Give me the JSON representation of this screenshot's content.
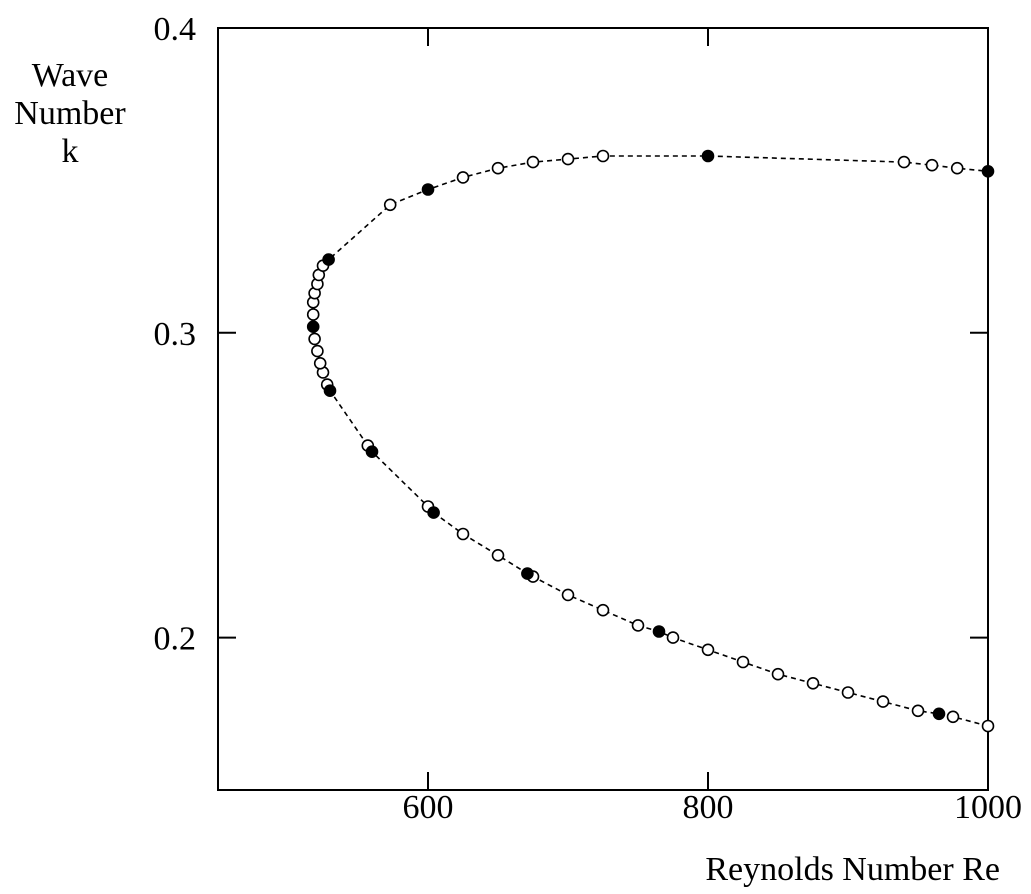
{
  "chart_data": {
    "type": "scatter",
    "xlabel": "Reynolds Number  Re",
    "ylabel": [
      "Wave",
      "Number",
      "k"
    ],
    "xlim": [
      450,
      1000
    ],
    "ylim": [
      0.15,
      0.4
    ],
    "x_ticks": [
      600,
      800,
      1000
    ],
    "x_tick_labels": [
      "600",
      "800",
      "1000"
    ],
    "y_ticks": [
      0.2,
      0.3,
      0.4
    ],
    "y_tick_labels": [
      "0.2",
      "0.3",
      "0.4"
    ],
    "grid": false,
    "curve": [
      [
        1000,
        0.171
      ],
      [
        975,
        0.174
      ],
      [
        965,
        0.175
      ],
      [
        950,
        0.176
      ],
      [
        925,
        0.179
      ],
      [
        900,
        0.182
      ],
      [
        875,
        0.185
      ],
      [
        850,
        0.188
      ],
      [
        825,
        0.192
      ],
      [
        800,
        0.196
      ],
      [
        775,
        0.2
      ],
      [
        765,
        0.202
      ],
      [
        750,
        0.204
      ],
      [
        725,
        0.209
      ],
      [
        700,
        0.214
      ],
      [
        675,
        0.22
      ],
      [
        671,
        0.221
      ],
      [
        650,
        0.227
      ],
      [
        625,
        0.234
      ],
      [
        604,
        0.241
      ],
      [
        600,
        0.243
      ],
      [
        560,
        0.261
      ],
      [
        557,
        0.263
      ],
      [
        530,
        0.281
      ],
      [
        528,
        0.283
      ],
      [
        525,
        0.287
      ],
      [
        523,
        0.29
      ],
      [
        521,
        0.294
      ],
      [
        519,
        0.298
      ],
      [
        518,
        0.302
      ],
      [
        518,
        0.306
      ],
      [
        518,
        0.31
      ],
      [
        519,
        0.313
      ],
      [
        521,
        0.316
      ],
      [
        522,
        0.319
      ],
      [
        525,
        0.322
      ],
      [
        529,
        0.324
      ],
      [
        573,
        0.342
      ],
      [
        600,
        0.347
      ],
      [
        625,
        0.351
      ],
      [
        650,
        0.354
      ],
      [
        675,
        0.356
      ],
      [
        700,
        0.357
      ],
      [
        725,
        0.358
      ],
      [
        800,
        0.358
      ],
      [
        940,
        0.356
      ],
      [
        960,
        0.355
      ],
      [
        978,
        0.354
      ],
      [
        1000,
        0.353
      ]
    ],
    "series": [
      {
        "name": "open",
        "marker": "open-circle",
        "points": [
          [
            1000,
            0.171
          ],
          [
            975,
            0.174
          ],
          [
            950,
            0.176
          ],
          [
            925,
            0.179
          ],
          [
            900,
            0.182
          ],
          [
            875,
            0.185
          ],
          [
            850,
            0.188
          ],
          [
            825,
            0.192
          ],
          [
            800,
            0.196
          ],
          [
            775,
            0.2
          ],
          [
            750,
            0.204
          ],
          [
            725,
            0.209
          ],
          [
            700,
            0.214
          ],
          [
            675,
            0.22
          ],
          [
            650,
            0.227
          ],
          [
            625,
            0.234
          ],
          [
            600,
            0.243
          ],
          [
            557,
            0.263
          ],
          [
            528,
            0.283
          ],
          [
            525,
            0.287
          ],
          [
            523,
            0.29
          ],
          [
            521,
            0.294
          ],
          [
            519,
            0.298
          ],
          [
            518,
            0.306
          ],
          [
            518,
            0.31
          ],
          [
            519,
            0.313
          ],
          [
            521,
            0.316
          ],
          [
            522,
            0.319
          ],
          [
            525,
            0.322
          ],
          [
            573,
            0.342
          ],
          [
            625,
            0.351
          ],
          [
            650,
            0.354
          ],
          [
            675,
            0.356
          ],
          [
            700,
            0.357
          ],
          [
            725,
            0.358
          ],
          [
            940,
            0.356
          ],
          [
            960,
            0.355
          ],
          [
            978,
            0.354
          ]
        ]
      },
      {
        "name": "filled",
        "marker": "filled-circle",
        "points": [
          [
            965,
            0.175
          ],
          [
            765,
            0.202
          ],
          [
            671,
            0.221
          ],
          [
            604,
            0.241
          ],
          [
            560,
            0.261
          ],
          [
            530,
            0.281
          ],
          [
            518,
            0.302
          ],
          [
            529,
            0.324
          ],
          [
            600,
            0.347
          ],
          [
            800,
            0.358
          ],
          [
            1000,
            0.353
          ]
        ]
      }
    ]
  }
}
